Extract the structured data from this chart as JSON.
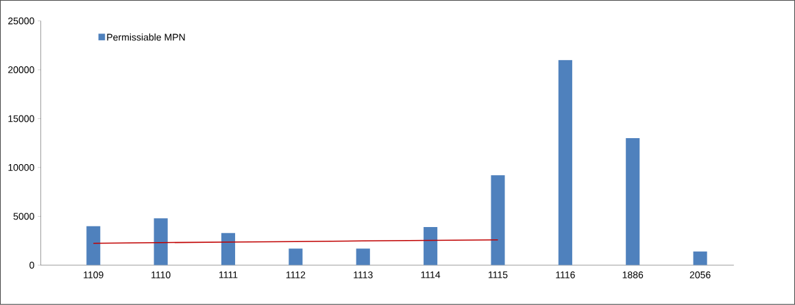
{
  "chart_data": {
    "type": "bar",
    "categories": [
      "1109",
      "1110",
      "1111",
      "1112",
      "1113",
      "1114",
      "1115",
      "1116",
      "1886",
      "2056"
    ],
    "series": [
      {
        "name": "Permissiable MPN",
        "color": "#4f81bd",
        "values": [
          4000,
          4800,
          3300,
          1700,
          1700,
          3900,
          9200,
          21000,
          13000,
          1400
        ]
      },
      {
        "type": "line",
        "color": "#c00000",
        "values": [
          2250,
          2310,
          2370,
          2420,
          2480,
          2540,
          2600,
          null,
          null,
          null
        ]
      }
    ],
    "ylim": [
      0,
      25000
    ],
    "yticks": [
      0,
      5000,
      10000,
      15000,
      20000,
      25000
    ],
    "legend": "top left"
  }
}
